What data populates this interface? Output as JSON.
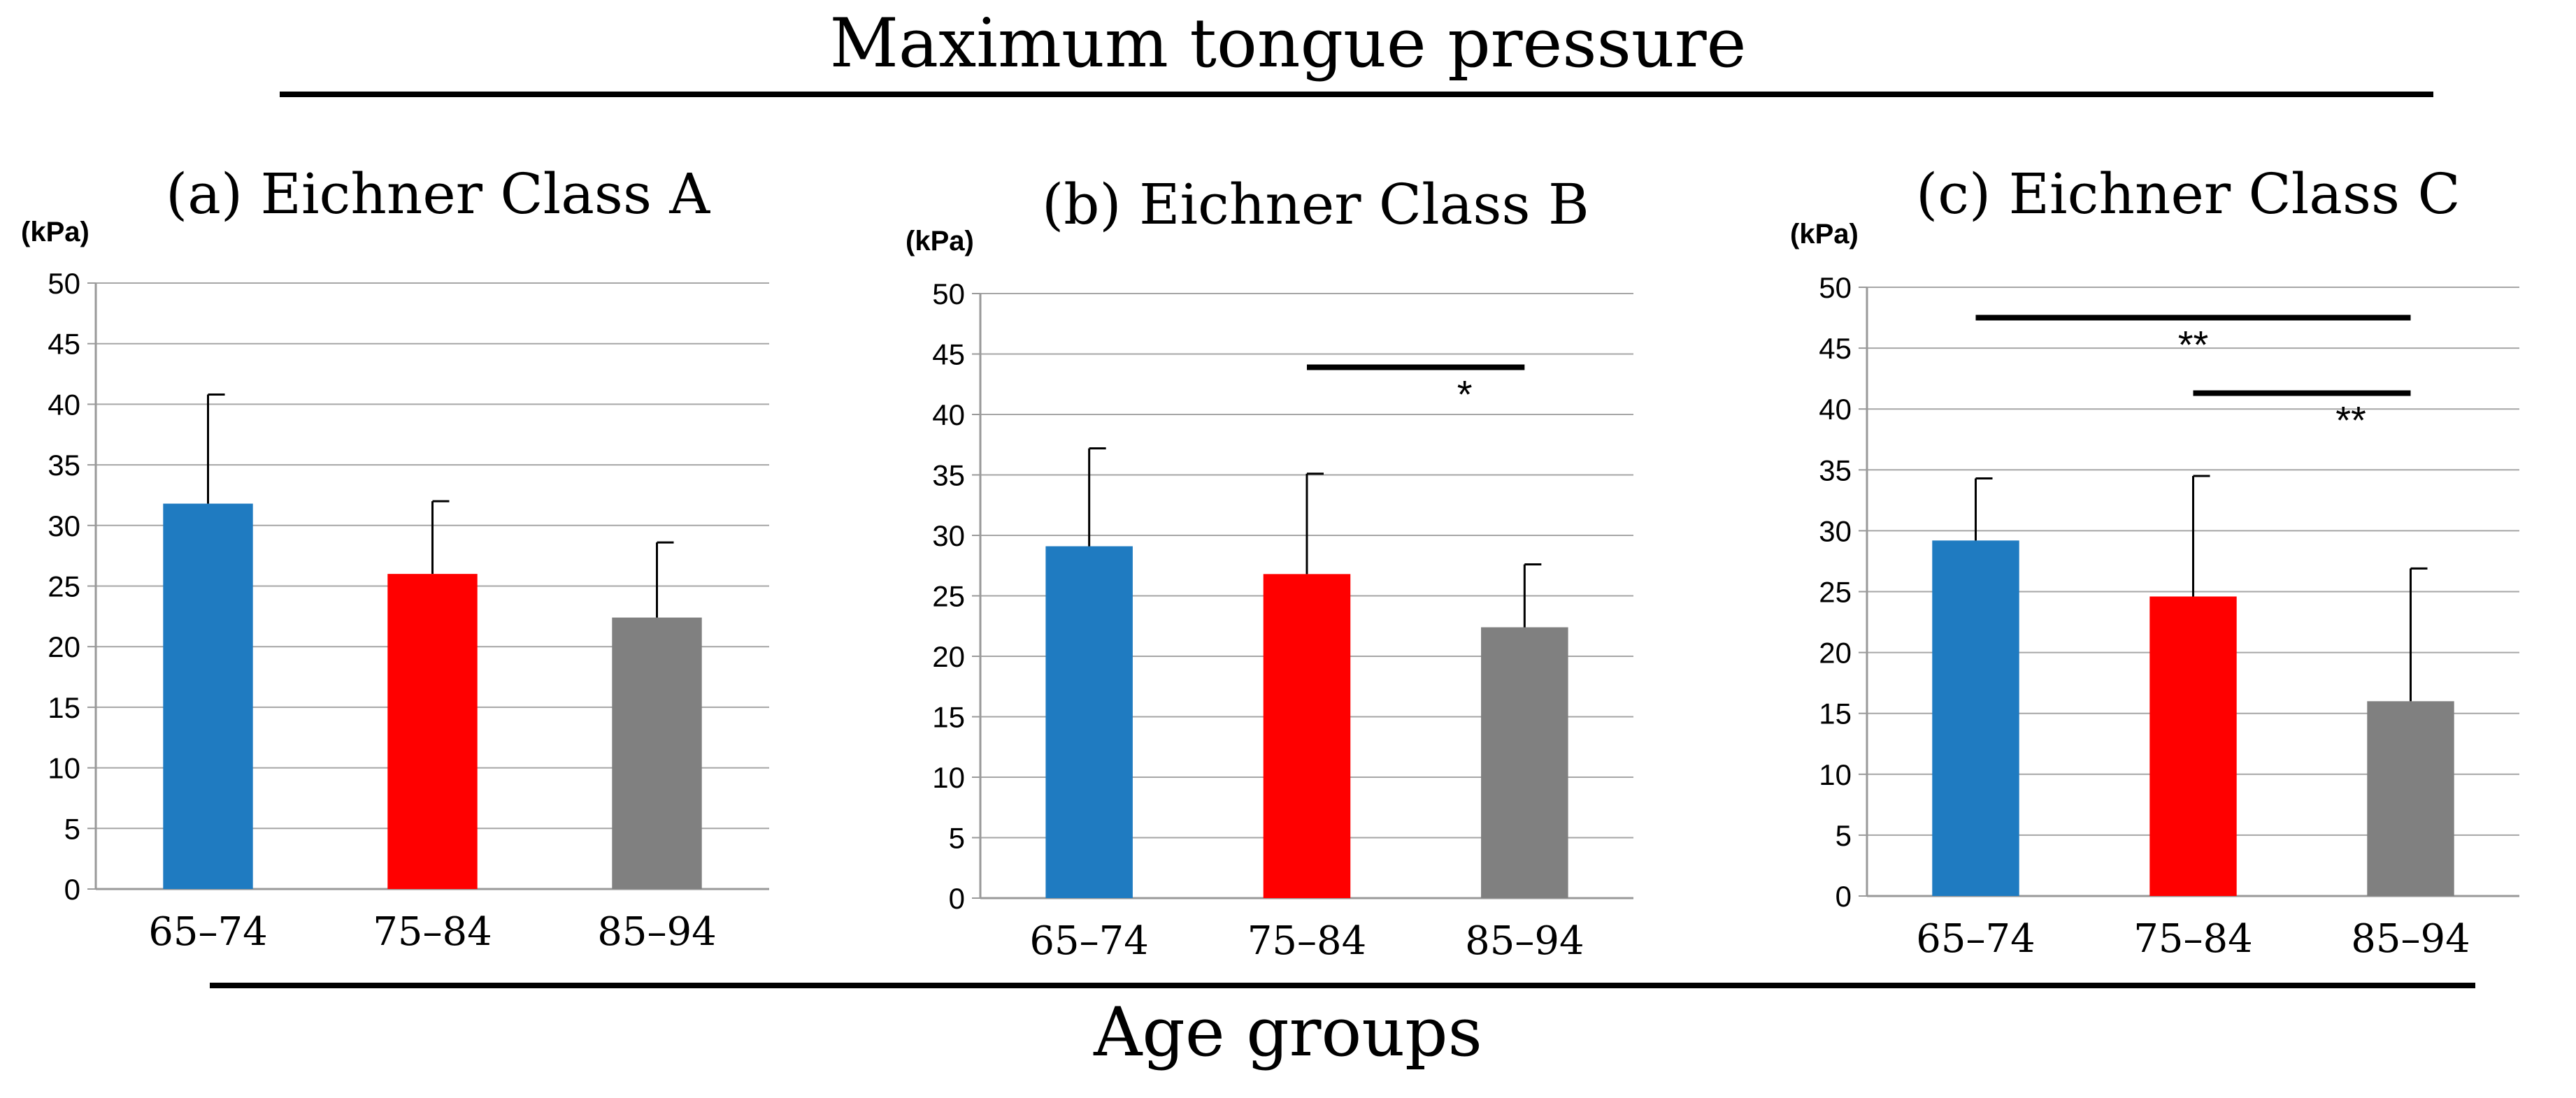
{
  "figure": {
    "title": "Maximum tongue pressure",
    "xlabel": "Age groups"
  },
  "colors": {
    "bar_65_74": "#1F7BC1",
    "bar_75_84": "#FF0000",
    "bar_85_94": "#808080",
    "grid": "#A6A6A6",
    "axis": "#999999",
    "line": "#000000"
  },
  "chart_data": [
    {
      "type": "bar",
      "panel_label": "(a)",
      "title": "Eichner Class A",
      "ylabel": "(kPa)",
      "categories": [
        "65–74",
        "75–84",
        "85–94"
      ],
      "values": [
        31.8,
        26.0,
        22.4
      ],
      "error_upper": [
        40.8,
        32.0,
        28.6
      ],
      "ylim": [
        0,
        50
      ],
      "yticks": [
        "0",
        "5",
        "10",
        "15",
        "20",
        "25",
        "30",
        "35",
        "40",
        "45",
        "50"
      ],
      "grid": true,
      "significance": []
    },
    {
      "type": "bar",
      "panel_label": "(b)",
      "title": "Eichner Class B",
      "ylabel": "(kPa)",
      "categories": [
        "65–74",
        "75–84",
        "85–94"
      ],
      "values": [
        29.1,
        26.8,
        22.4
      ],
      "error_upper": [
        37.2,
        35.1,
        27.6
      ],
      "ylim": [
        0,
        50
      ],
      "yticks": [
        "0",
        "5",
        "10",
        "15",
        "20",
        "25",
        "30",
        "35",
        "40",
        "45",
        "50"
      ],
      "grid": true,
      "significance": [
        {
          "from": 1,
          "to": 2,
          "level": 43.9,
          "label": "*",
          "label_below": true
        }
      ]
    },
    {
      "type": "bar",
      "panel_label": "(c)",
      "title": "Eichner Class C",
      "ylabel": "(kPa)",
      "categories": [
        "65–74",
        "75–84",
        "85–94"
      ],
      "values": [
        29.2,
        24.6,
        16.0
      ],
      "error_upper": [
        34.3,
        34.5,
        26.9
      ],
      "ylim": [
        0,
        50
      ],
      "yticks": [
        "0",
        "5",
        "10",
        "15",
        "20",
        "25",
        "30",
        "35",
        "40",
        "45",
        "50"
      ],
      "grid": true,
      "significance": [
        {
          "from": 0,
          "to": 2,
          "level": 47.5,
          "label": "**",
          "label_below": true
        },
        {
          "from": 1,
          "to": 2,
          "level": 41.3,
          "label": "**",
          "label_below": true
        }
      ]
    }
  ]
}
